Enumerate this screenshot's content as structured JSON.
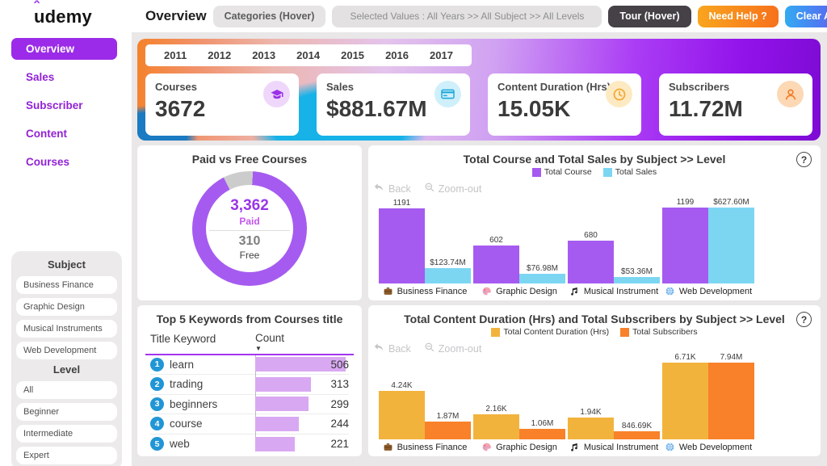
{
  "brand": {
    "logo_text": "udemy"
  },
  "sidebar": {
    "items": [
      {
        "label": "Overview",
        "active": true
      },
      {
        "label": "Sales",
        "active": false
      },
      {
        "label": "Subscriber",
        "active": false
      },
      {
        "label": "Content",
        "active": false
      },
      {
        "label": "Courses",
        "active": false
      }
    ]
  },
  "topbar": {
    "title": "Overview",
    "categories_label": "Categories (Hover)",
    "selected_values": "Selected Values : All Years >> All Subject >> All Levels",
    "tour_label": "Tour (Hover)",
    "need_help_label": "Need Help ?",
    "clear_filter_label": "Clear All Filter"
  },
  "years": [
    "2011",
    "2012",
    "2013",
    "2014",
    "2015",
    "2016",
    "2017"
  ],
  "kpis": [
    {
      "label": "Courses",
      "value": "3672",
      "icon": "graduation-cap",
      "icon_color": "#9b30e8",
      "icon_bg": "#eed7fb"
    },
    {
      "label": "Sales",
      "value": "$881.67M",
      "icon": "credit-card",
      "icon_color": "#1ba7d8",
      "icon_bg": "#cfeffb"
    },
    {
      "label": "Content Duration (Hrs)",
      "value": "15.05K",
      "icon": "clock",
      "icon_color": "#f2a93b",
      "icon_bg": "#fdeac2"
    },
    {
      "label": "Subscribers",
      "value": "11.72M",
      "icon": "person",
      "icon_color": "#f07c28",
      "icon_bg": "#fcd8b5"
    }
  ],
  "filters": {
    "subject": {
      "title": "Subject",
      "options": [
        "Business Finance",
        "Graphic Design",
        "Musical Instruments",
        "Web Development"
      ]
    },
    "level": {
      "title": "Level",
      "options": [
        "All",
        "Beginner",
        "Intermediate",
        "Expert"
      ]
    }
  },
  "pbi_toolbar": {
    "back_label": "Back",
    "zoom_out_label": "Zoom-out"
  },
  "icons": {
    "help": "?",
    "sort_desc": "▼"
  },
  "categories": [
    {
      "label": "Business Finance",
      "icon": "briefcase"
    },
    {
      "label": "Graphic Design",
      "icon": "palette"
    },
    {
      "label": "Musical Instrument",
      "icon": "music-note"
    },
    {
      "label": "Web Development",
      "icon": "globe"
    }
  ],
  "donut_center": {
    "paid_value": "3,362",
    "paid_label": "Paid",
    "free_value": "310",
    "free_label": "Free"
  },
  "chart_data": [
    {
      "type": "pie",
      "title": "Paid vs Free Courses",
      "slices": [
        {
          "label": "Paid",
          "value": 3362,
          "display": "3,362",
          "color": "#a55bf0"
        },
        {
          "label": "Free",
          "value": 310,
          "display": "310",
          "color": "#cccccc"
        }
      ]
    },
    {
      "type": "bar",
      "title": "Total Course and Total Sales by Subject >> Level",
      "categories": [
        "Business Finance",
        "Graphic Design",
        "Musical Instrument",
        "Web Development"
      ],
      "series": [
        {
          "name": "Total Course",
          "color": "#a55bf0",
          "values": [
            1191,
            602,
            680,
            1199
          ],
          "labels": [
            "1191",
            "602",
            "680",
            "1199"
          ]
        },
        {
          "name": "Total Sales",
          "color": "#7cd6f2",
          "values": [
            123.74,
            76.98,
            53.36,
            627.6
          ],
          "labels": [
            "$123.74M",
            "$76.98M",
            "$53.36M",
            "$627.60M"
          ]
        }
      ],
      "legend_position": "top",
      "grid": false
    },
    {
      "type": "table",
      "title": "Top 5 Keywords from Courses title",
      "columns": [
        "Title Keyword",
        "Count"
      ],
      "rows": [
        {
          "rank": 1,
          "keyword": "learn",
          "count": 506
        },
        {
          "rank": 2,
          "keyword": "trading",
          "count": 313
        },
        {
          "rank": 3,
          "keyword": "beginners",
          "count": 299
        },
        {
          "rank": 4,
          "keyword": "course",
          "count": 244
        },
        {
          "rank": 5,
          "keyword": "web",
          "count": 221
        }
      ]
    },
    {
      "type": "bar",
      "title": "Total Content Duration (Hrs) and Total Subscribers by Subject >> Level",
      "categories": [
        "Business Finance",
        "Graphic Design",
        "Musical Instrument",
        "Web Development"
      ],
      "series": [
        {
          "name": "Total Content Duration (Hrs)",
          "color": "#f2b33d",
          "values": [
            4240,
            2160,
            1940,
            6710
          ],
          "labels": [
            "4.24K",
            "2.16K",
            "1.94K",
            "6.71K"
          ]
        },
        {
          "name": "Total Subscribers",
          "color": "#f8812a",
          "values": [
            1870000,
            1060000,
            846690,
            7940000
          ],
          "labels": [
            "1.87M",
            "1.06M",
            "846.69K",
            "7.94M"
          ]
        }
      ],
      "legend_position": "top",
      "grid": false
    }
  ]
}
